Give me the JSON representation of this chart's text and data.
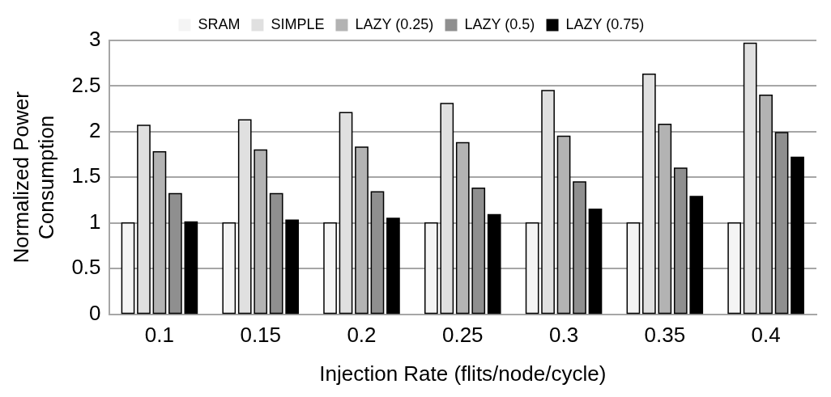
{
  "chart_data": {
    "type": "bar",
    "xlabel": "Injection Rate (flits/node/cycle)",
    "ylabel": "Normalized Power Consumption",
    "categories": [
      "0.1",
      "0.15",
      "0.2",
      "0.25",
      "0.3",
      "0.35",
      "0.4"
    ],
    "series": [
      {
        "name": "SRAM",
        "color": "#f4f4f4",
        "values": [
          1,
          1,
          1,
          1,
          1,
          1,
          1
        ]
      },
      {
        "name": "SIMPLE",
        "color": "#e0e0e0",
        "values": [
          2.07,
          2.13,
          2.21,
          2.31,
          2.45,
          2.63,
          2.97
        ]
      },
      {
        "name": "LAZY (0.25)",
        "color": "#b3b3b3",
        "values": [
          1.78,
          1.8,
          1.83,
          1.88,
          1.95,
          2.08,
          2.4
        ]
      },
      {
        "name": "LAZY (0.5)",
        "color": "#8f8f8f",
        "values": [
          1.32,
          1.32,
          1.34,
          1.38,
          1.45,
          1.6,
          1.99
        ]
      },
      {
        "name": "LAZY (0.75)",
        "color": "#000000",
        "values": [
          1.01,
          1.03,
          1.05,
          1.09,
          1.15,
          1.29,
          1.72
        ]
      }
    ],
    "ylim": [
      0,
      3
    ],
    "yticks": [
      0,
      0.5,
      1,
      1.5,
      2,
      2.5,
      3
    ],
    "grid": "y",
    "legend": "top"
  }
}
